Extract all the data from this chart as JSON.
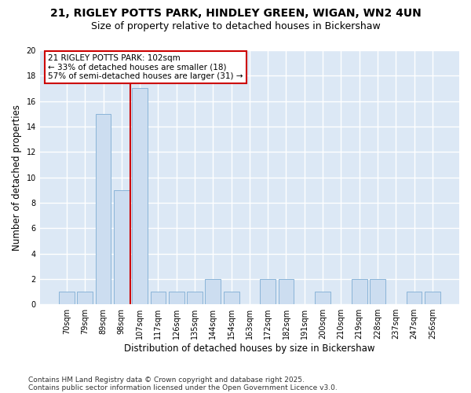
{
  "title1": "21, RIGLEY POTTS PARK, HINDLEY GREEN, WIGAN, WN2 4UN",
  "title2": "Size of property relative to detached houses in Bickershaw",
  "xlabel": "Distribution of detached houses by size in Bickershaw",
  "ylabel": "Number of detached properties",
  "categories": [
    "70sqm",
    "79sqm",
    "89sqm",
    "98sqm",
    "107sqm",
    "117sqm",
    "126sqm",
    "135sqm",
    "144sqm",
    "154sqm",
    "163sqm",
    "172sqm",
    "182sqm",
    "191sqm",
    "200sqm",
    "210sqm",
    "219sqm",
    "228sqm",
    "237sqm",
    "247sqm",
    "256sqm"
  ],
  "values": [
    1,
    1,
    15,
    9,
    17,
    1,
    1,
    1,
    2,
    1,
    0,
    2,
    2,
    0,
    1,
    0,
    2,
    2,
    0,
    1,
    1
  ],
  "bar_color": "#ccddf0",
  "bar_edge_color": "#8ab4d8",
  "vline_x": 3.5,
  "vline_color": "#cc0000",
  "annotation_line1": "21 RIGLEY POTTS PARK: 102sqm",
  "annotation_line2": "← 33% of detached houses are smaller (18)",
  "annotation_line3": "57% of semi-detached houses are larger (31) →",
  "annotation_box_edgecolor": "#cc0000",
  "annotation_fill": "#ffffff",
  "footer1": "Contains HM Land Registry data © Crown copyright and database right 2025.",
  "footer2": "Contains public sector information licensed under the Open Government Licence v3.0.",
  "ylim": [
    0,
    20
  ],
  "yticks": [
    0,
    2,
    4,
    6,
    8,
    10,
    12,
    14,
    16,
    18,
    20
  ],
  "fig_bg_color": "#ffffff",
  "plot_bg_color": "#dce8f5",
  "grid_color": "#ffffff",
  "title_fontsize": 10,
  "subtitle_fontsize": 9,
  "tick_fontsize": 7,
  "ylabel_fontsize": 8.5,
  "xlabel_fontsize": 8.5,
  "footer_fontsize": 6.5,
  "ann_fontsize": 7.5
}
